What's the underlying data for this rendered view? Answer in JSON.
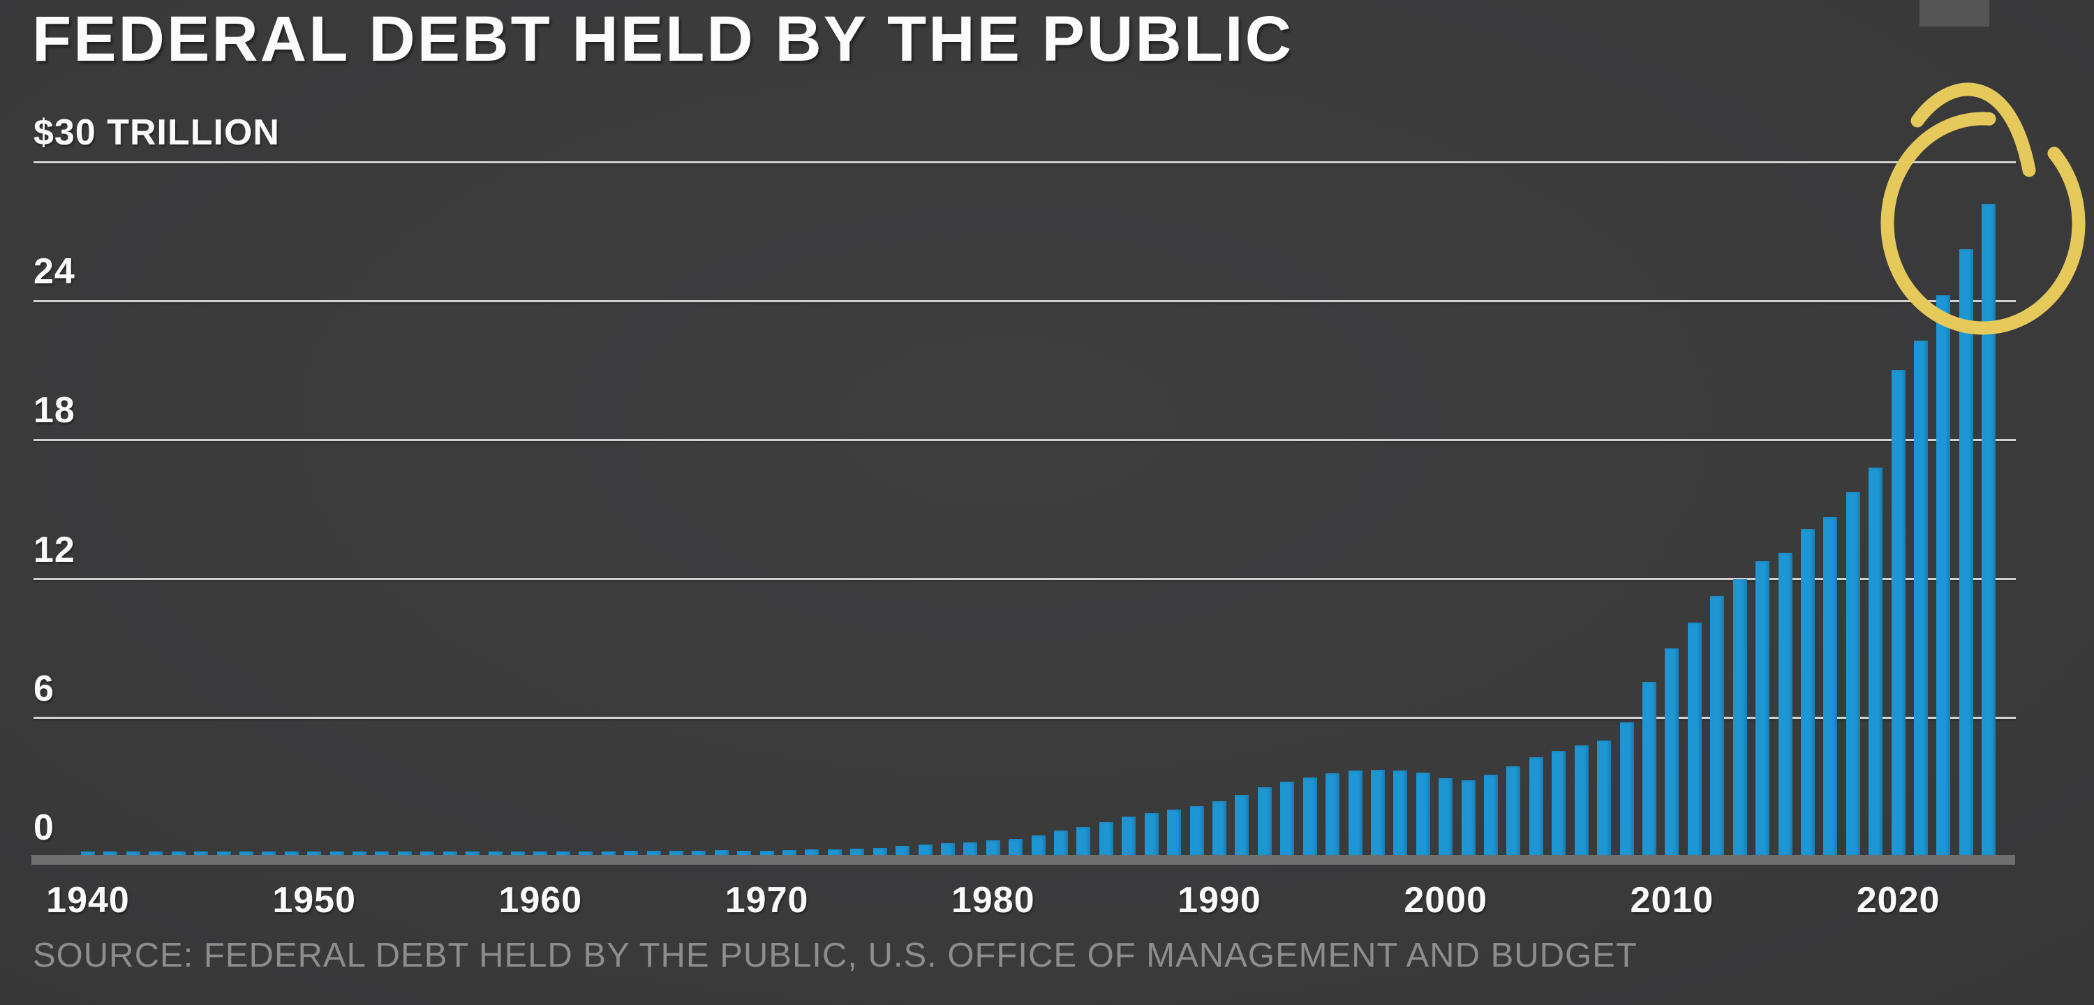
{
  "header": {
    "title": "FEDERAL DEBT HELD BY THE PUBLIC"
  },
  "footer": {
    "source": "SOURCE: FEDERAL DEBT HELD BY THE PUBLIC, U.S. OFFICE OF MANAGEMENT AND BUDGET"
  },
  "colors": {
    "background": "#3b3b3c",
    "bar": "#1e96d4",
    "gridline": "#dedede",
    "axis_baseline": "#6f6f6f",
    "tick_text": "#fafafa",
    "title_text": "#fcfcfc",
    "source_text": "#8d8d8d",
    "annotation_yellow": "#e5ca5b",
    "video_ui_fragment": "#555555"
  },
  "chart_data": {
    "type": "bar",
    "title": "FEDERAL DEBT HELD BY THE PUBLIC",
    "unit": "trillions of U.S. dollars",
    "x_start": 1940,
    "x_end": 2024,
    "values": [
      0.04,
      0.05,
      0.07,
      0.13,
      0.18,
      0.24,
      0.24,
      0.22,
      0.22,
      0.21,
      0.22,
      0.21,
      0.21,
      0.22,
      0.22,
      0.23,
      0.22,
      0.22,
      0.23,
      0.24,
      0.24,
      0.24,
      0.25,
      0.25,
      0.26,
      0.26,
      0.26,
      0.27,
      0.29,
      0.28,
      0.28,
      0.3,
      0.32,
      0.34,
      0.35,
      0.39,
      0.48,
      0.55,
      0.61,
      0.64,
      0.71,
      0.78,
      0.92,
      1.14,
      1.31,
      1.51,
      1.74,
      1.89,
      2.05,
      2.19,
      2.41,
      2.69,
      3.0,
      3.25,
      3.43,
      3.6,
      3.73,
      3.77,
      3.72,
      3.63,
      3.41,
      3.32,
      3.54,
      3.91,
      4.3,
      4.59,
      4.83,
      5.04,
      5.8,
      7.55,
      9.02,
      10.13,
      11.28,
      11.98,
      12.78,
      13.12,
      14.17,
      14.67,
      15.75,
      16.8,
      21.02,
      22.28,
      24.25,
      26.24,
      28.2
    ],
    "ylim": [
      0,
      30
    ],
    "yticks": [
      {
        "value": 30,
        "label": "$30 TRILLION"
      },
      {
        "value": 24,
        "label": "24"
      },
      {
        "value": 18,
        "label": "18"
      },
      {
        "value": 12,
        "label": "12"
      },
      {
        "value": 6,
        "label": "6"
      },
      {
        "value": 0,
        "label": "0"
      }
    ],
    "xticks": [
      1940,
      1950,
      1960,
      1970,
      1980,
      1990,
      2000,
      2010,
      2020
    ],
    "grid": true,
    "legend": false,
    "annotation": {
      "type": "hand-drawn marker circle",
      "highlights": "2022-2024 bars (debt nearing $30 trillion)"
    }
  }
}
